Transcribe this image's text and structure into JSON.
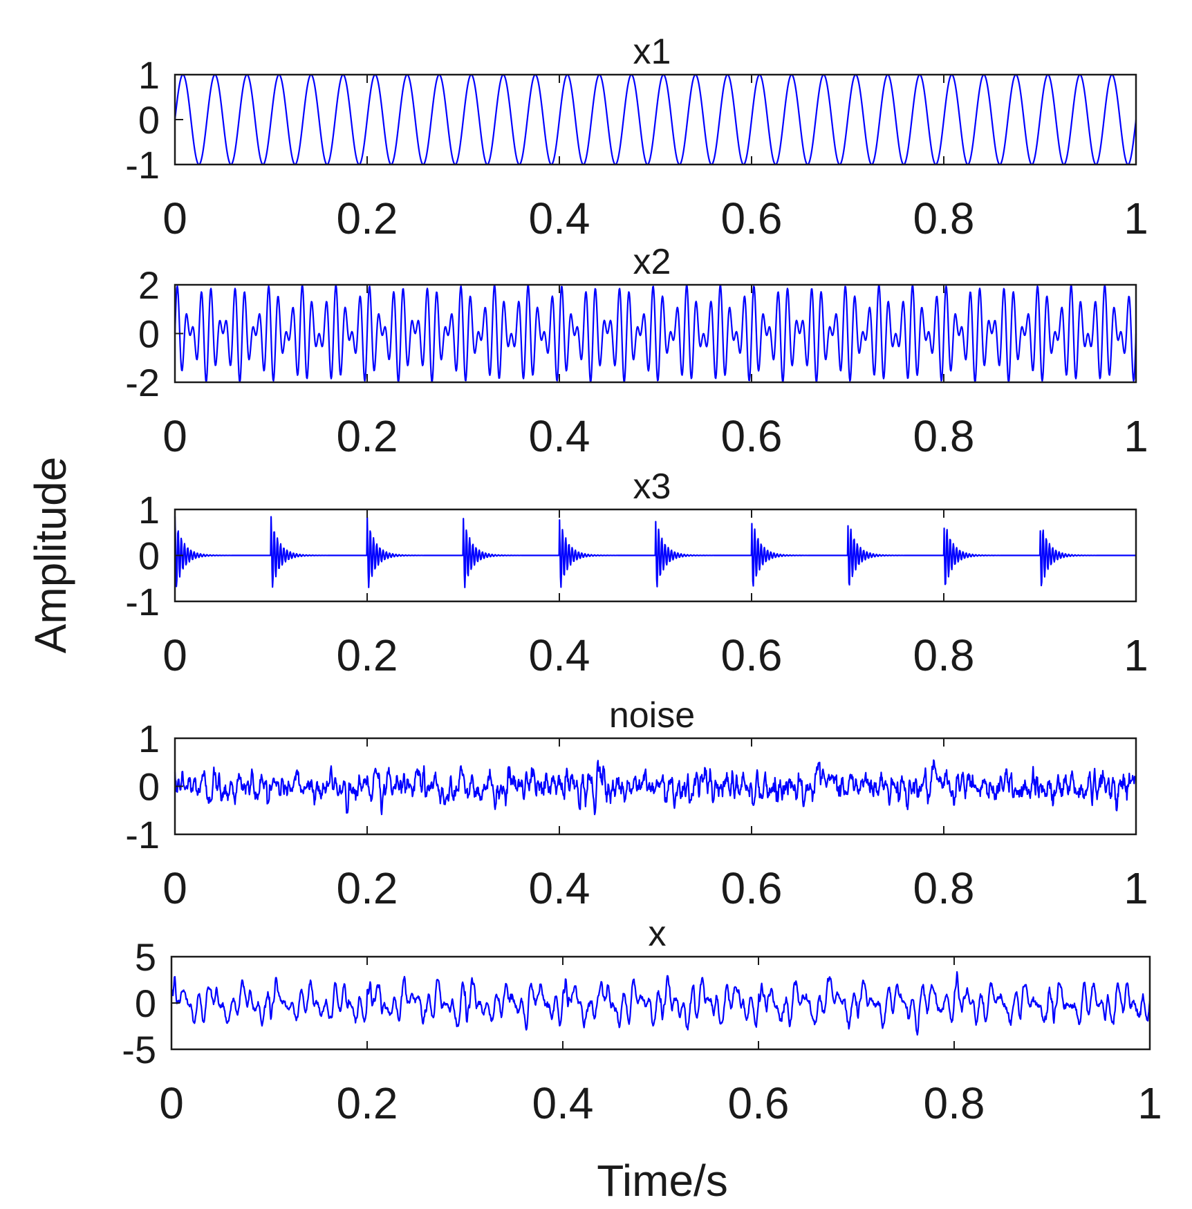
{
  "figure": {
    "ylabel": "Amplitude",
    "xlabel": "Time/s",
    "line_color": "#0000ff",
    "axis_color": "#1a1a1a"
  },
  "chart_data": [
    {
      "type": "line",
      "title": "x1",
      "signal": "sine",
      "frequency_hz": 30,
      "amplitude": 1,
      "xlim": [
        0,
        1
      ],
      "ylim": [
        -1,
        1
      ],
      "xticks": [
        "0",
        "0.2",
        "0.4",
        "0.6",
        "0.8",
        "1"
      ],
      "yticks": [
        "1",
        "0",
        "-1"
      ],
      "ytick_values": [
        1,
        0,
        -1
      ]
    },
    {
      "type": "line",
      "title": "x2",
      "signal": "amplitude-modulated",
      "carrier_hz": 100,
      "modulation_hz": 15,
      "amplitude": 2,
      "xlim": [
        0,
        1
      ],
      "ylim": [
        -2,
        2
      ],
      "xticks": [
        "0",
        "0.2",
        "0.4",
        "0.6",
        "0.8",
        "1"
      ],
      "yticks": [
        "2",
        "0",
        "-2"
      ],
      "ytick_values": [
        2,
        0,
        -2
      ]
    },
    {
      "type": "line",
      "title": "x3",
      "signal": "periodic-impulses",
      "impulse_period_s": 0.1,
      "ringing_hz": 300,
      "decay_rate": 120,
      "amplitude": 0.85,
      "xlim": [
        0,
        1
      ],
      "ylim": [
        -1,
        1
      ],
      "xticks": [
        "0",
        "0.2",
        "0.4",
        "0.6",
        "0.8",
        "1"
      ],
      "yticks": [
        "1",
        "0",
        "-1"
      ],
      "ytick_values": [
        1,
        0,
        -1
      ]
    },
    {
      "type": "line",
      "title": "noise",
      "signal": "gaussian-noise",
      "std": 0.17,
      "xlim": [
        0,
        1
      ],
      "ylim": [
        -1,
        1
      ],
      "xticks": [
        "0",
        "0.2",
        "0.4",
        "0.6",
        "0.8",
        "1"
      ],
      "yticks": [
        "1",
        "0",
        "-1"
      ],
      "ytick_values": [
        1,
        0,
        -1
      ]
    },
    {
      "type": "line",
      "title": "x",
      "signal": "sum of x1, x2, x3 and noise",
      "xlim": [
        0,
        1
      ],
      "ylim": [
        -5,
        5
      ],
      "xticks": [
        "0",
        "0.2",
        "0.4",
        "0.6",
        "0.8",
        "1"
      ],
      "yticks": [
        "5",
        "0",
        "-5"
      ],
      "ytick_values": [
        5,
        0,
        -5
      ]
    }
  ]
}
